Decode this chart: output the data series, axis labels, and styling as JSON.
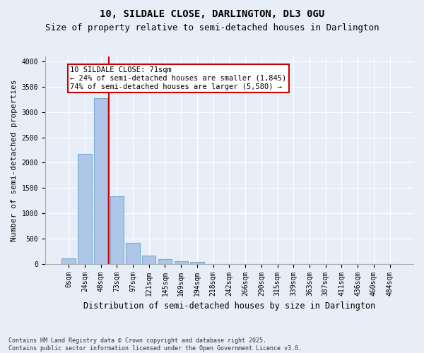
{
  "title_line1": "10, SILDALE CLOSE, DARLINGTON, DL3 0GU",
  "title_line2": "Size of property relative to semi-detached houses in Darlington",
  "xlabel": "Distribution of semi-detached houses by size in Darlington",
  "ylabel": "Number of semi-detached properties",
  "footnote": "Contains HM Land Registry data © Crown copyright and database right 2025.\nContains public sector information licensed under the Open Government Licence v3.0.",
  "bar_labels": [
    "0sqm",
    "24sqm",
    "48sqm",
    "73sqm",
    "97sqm",
    "121sqm",
    "145sqm",
    "169sqm",
    "194sqm",
    "218sqm",
    "242sqm",
    "266sqm",
    "290sqm",
    "315sqm",
    "339sqm",
    "363sqm",
    "387sqm",
    "411sqm",
    "436sqm",
    "460sqm",
    "484sqm"
  ],
  "bar_values": [
    110,
    2180,
    3280,
    1340,
    410,
    160,
    95,
    50,
    35,
    0,
    0,
    0,
    0,
    0,
    0,
    0,
    0,
    0,
    0,
    0,
    0
  ],
  "bar_color": "#aec6e8",
  "bar_edgecolor": "#7bacd4",
  "vline_x": 2.5,
  "vline_color": "#cc0000",
  "annotation_text": "10 SILDALE CLOSE: 71sqm\n← 24% of semi-detached houses are smaller (1,845)\n74% of semi-detached houses are larger (5,580) →",
  "ylim": [
    0,
    4100
  ],
  "bg_color": "#e8eef8",
  "plot_bg_color": "#e8eef8",
  "grid_color": "#ffffff",
  "title_fontsize": 10,
  "subtitle_fontsize": 9,
  "tick_fontsize": 7,
  "ylabel_fontsize": 8,
  "xlabel_fontsize": 8.5,
  "ann_fontsize": 7.5,
  "footnote_fontsize": 6
}
